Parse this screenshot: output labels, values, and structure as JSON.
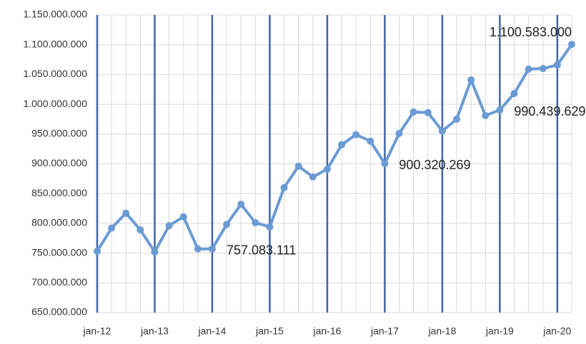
{
  "chart_data": {
    "type": "line",
    "categories": [
      "jan-12",
      null,
      null,
      null,
      "jan-13",
      null,
      null,
      null,
      "jan-14",
      null,
      null,
      null,
      "jan-15",
      null,
      null,
      null,
      "jan-16",
      null,
      null,
      null,
      "jan-17",
      null,
      null,
      null,
      "jan-18",
      null,
      null,
      null,
      "jan-19",
      null,
      null,
      null,
      "jan-20",
      null
    ],
    "series": [
      {
        "color": "#6a9bd3",
        "values": [
          753000000,
          792000000,
          817000000,
          789000000,
          752000000,
          796000000,
          811000000,
          757000000,
          757083111,
          798000000,
          832000000,
          801000000,
          794000000,
          860000000,
          896000000,
          878000000,
          891000000,
          932000000,
          949000000,
          938000000,
          900320269,
          951000000,
          987000000,
          986000000,
          955000000,
          975000000,
          1041000000,
          981000000,
          990439629,
          1018000000,
          1059000000,
          1060000000,
          1066000000,
          1100583000
        ],
        "value_labels": [
          null,
          null,
          null,
          null,
          null,
          null,
          null,
          null,
          "757.083.111",
          null,
          null,
          null,
          null,
          null,
          null,
          null,
          null,
          null,
          null,
          null,
          "900.320.269",
          null,
          null,
          null,
          null,
          null,
          null,
          null,
          "990.439.629",
          null,
          null,
          null,
          null,
          "1.100.583.000"
        ]
      }
    ],
    "ylim": [
      650000000,
      1150000000
    ],
    "yticks": [
      {
        "value": 650000000,
        "label": "650.000.000"
      },
      {
        "value": 700000000,
        "label": "700.000.000"
      },
      {
        "value": 750000000,
        "label": "750.000.000"
      },
      {
        "value": 800000000,
        "label": "800.000.000"
      },
      {
        "value": 850000000,
        "label": "850.000.000"
      },
      {
        "value": 900000000,
        "label": "900.000.000"
      },
      {
        "value": 950000000,
        "label": "950.000.000"
      },
      {
        "value": 1000000000,
        "label": "1.000.000.000"
      },
      {
        "value": 1050000000,
        "label": "1.050.000.000"
      },
      {
        "value": 1100000000,
        "label": "1.100.000.000"
      },
      {
        "value": 1150000000,
        "label": "1.150.000.000"
      }
    ],
    "grid": true,
    "major_grid_color": "#4066a8"
  }
}
